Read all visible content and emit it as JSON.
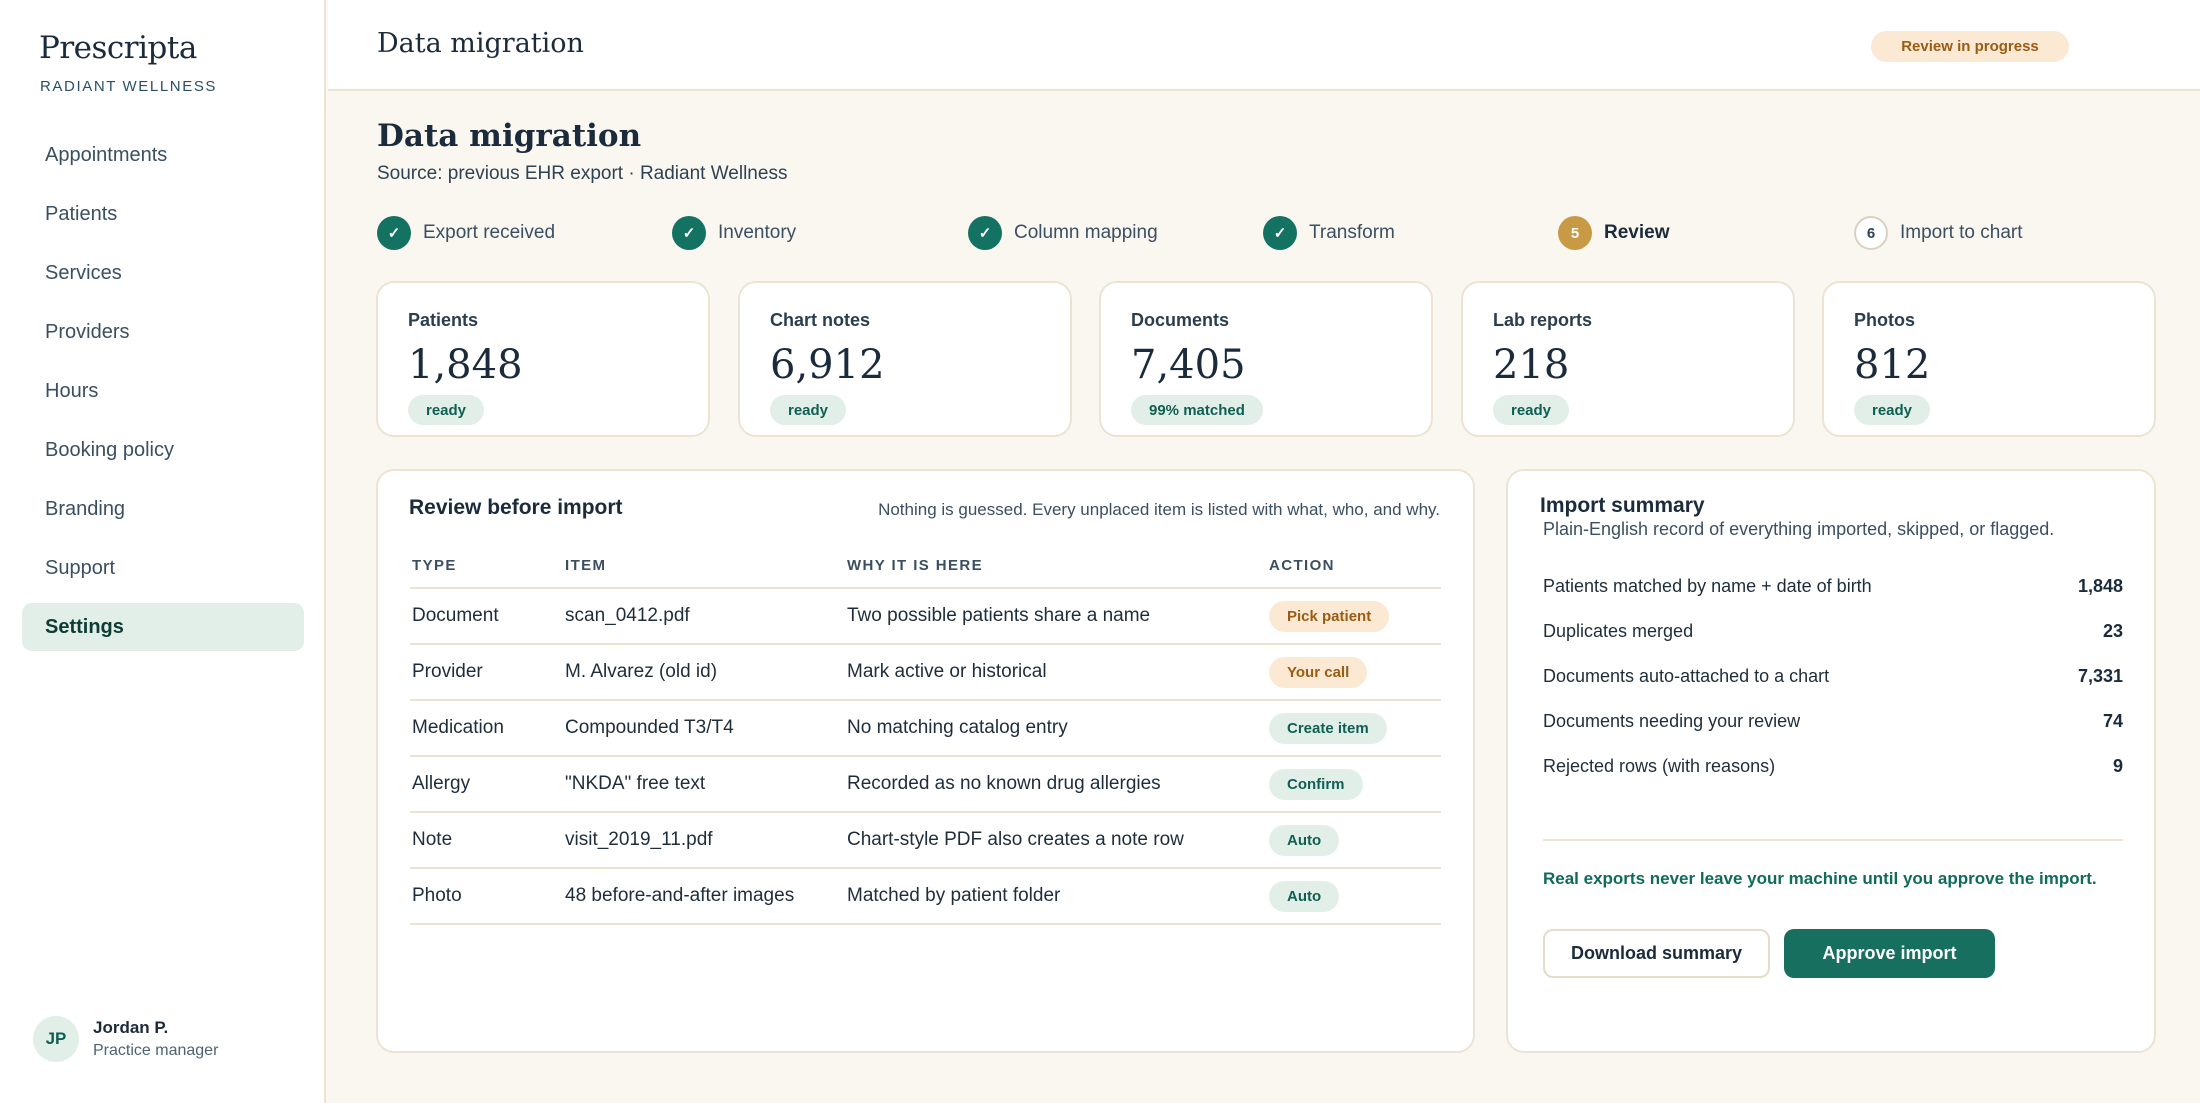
{
  "sidebar": {
    "brand": "Prescripta",
    "practice": "RADIANT WELLNESS",
    "items": [
      {
        "label": "Appointments"
      },
      {
        "label": "Patients"
      },
      {
        "label": "Services"
      },
      {
        "label": "Providers"
      },
      {
        "label": "Hours"
      },
      {
        "label": "Booking policy"
      },
      {
        "label": "Branding"
      },
      {
        "label": "Support"
      },
      {
        "label": "Settings",
        "active": true
      }
    ],
    "user": {
      "initials": "JP",
      "name": "Jordan P.",
      "role": "Practice manager"
    }
  },
  "header": {
    "title": "Data migration",
    "status": "Review in progress"
  },
  "main": {
    "title": "Data migration",
    "subtitle": "Source: previous EHR export · Radiant Wellness",
    "steps": [
      {
        "marker": "✓",
        "label": "Export received",
        "state": "done"
      },
      {
        "marker": "✓",
        "label": "Inventory",
        "state": "done"
      },
      {
        "marker": "✓",
        "label": "Column mapping",
        "state": "done"
      },
      {
        "marker": "✓",
        "label": "Transform",
        "state": "done"
      },
      {
        "marker": "5",
        "label": "Review",
        "state": "current"
      },
      {
        "marker": "6",
        "label": "Import to chart",
        "state": "todo"
      }
    ],
    "stats": [
      {
        "label": "Patients",
        "value": "1,848",
        "badge": "ready"
      },
      {
        "label": "Chart notes",
        "value": "6,912",
        "badge": "ready"
      },
      {
        "label": "Documents",
        "value": "7,405",
        "badge": "99% matched"
      },
      {
        "label": "Lab reports",
        "value": "218",
        "badge": "ready"
      },
      {
        "label": "Photos",
        "value": "812",
        "badge": "ready"
      }
    ]
  },
  "review": {
    "title": "Review before import",
    "note": "Nothing is guessed. Every unplaced item is listed with what, who, and why.",
    "columns": [
      "TYPE",
      "ITEM",
      "WHY IT IS HERE",
      "ACTION"
    ],
    "rows": [
      {
        "type": "Document",
        "item": "scan_0412.pdf",
        "why": "Two possible patients share a name",
        "action": "Pick patient",
        "tone": "warn"
      },
      {
        "type": "Provider",
        "item": "M. Alvarez (old id)",
        "why": "Mark active or historical",
        "action": "Your call",
        "tone": "warn"
      },
      {
        "type": "Medication",
        "item": "Compounded T3/T4",
        "why": "No matching catalog entry",
        "action": "Create item",
        "tone": "ok"
      },
      {
        "type": "Allergy",
        "item": "\"NKDA\" free text",
        "why": "Recorded as no known drug allergies",
        "action": "Confirm",
        "tone": "ok"
      },
      {
        "type": "Note",
        "item": "visit_2019_11.pdf",
        "why": "Chart-style PDF also creates a note row",
        "action": "Auto",
        "tone": "ok"
      },
      {
        "type": "Photo",
        "item": "48 before-and-after images",
        "why": "Matched by patient folder",
        "action": "Auto",
        "tone": "ok"
      }
    ]
  },
  "summary": {
    "title": "Import summary",
    "subtitle": "Plain-English record of everything imported, skipped, or flagged.",
    "rows": [
      {
        "label": "Patients matched by name + date of birth",
        "value": "1,848"
      },
      {
        "label": "Duplicates merged",
        "value": "23"
      },
      {
        "label": "Documents auto-attached to a chart",
        "value": "7,331"
      },
      {
        "label": "Documents needing your review",
        "value": "74"
      },
      {
        "label": "Rejected rows (with reasons)",
        "value": "9"
      }
    ],
    "privacy": "Real exports never leave your machine until you approve the import.",
    "download_label": "Download summary",
    "approve_label": "Approve import"
  },
  "colors": {
    "accent": "#17705f",
    "accent_soft": "#e2efe9",
    "warn_bg": "#fbe9d4",
    "warn_text": "#9a5c14",
    "current_step": "#c99a46",
    "border": "#ece3d3",
    "page_bg": "#faf7f1"
  }
}
